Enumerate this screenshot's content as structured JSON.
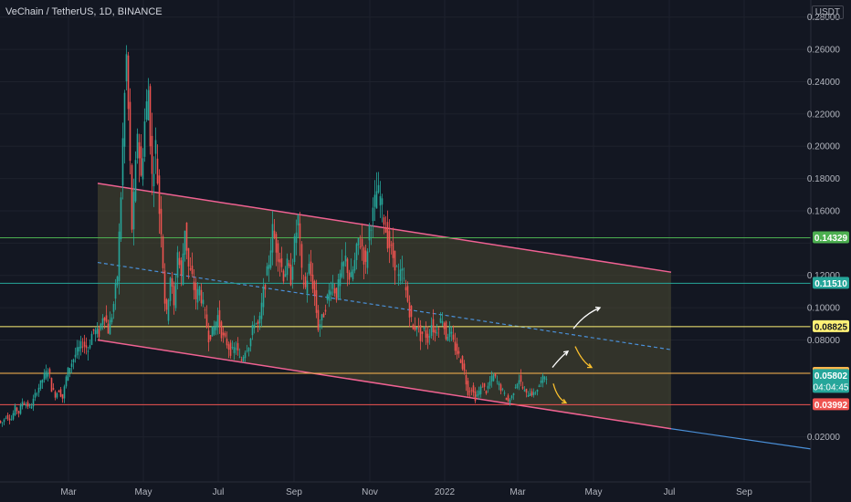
{
  "header": {
    "title": "VeChain / TetherUS, 1D, BINANCE",
    "currency": "USDT"
  },
  "chart_data": {
    "type": "candlestick",
    "x_tick_labels": [
      "Mar",
      "May",
      "Jul",
      "Sep",
      "Nov",
      "2022",
      "Mar",
      "May",
      "Jul",
      "Sep"
    ],
    "y_tick_labels": [
      "0.28000",
      "0.26000",
      "0.24000",
      "0.22000",
      "0.20000",
      "0.18000",
      "0.16000",
      "0.12000",
      "0.10000",
      "0.08000",
      "0.02000"
    ],
    "ylim": [
      0.0,
      0.29
    ],
    "price_path": [
      [
        0,
        0.03
      ],
      [
        3,
        0.028
      ],
      [
        8,
        0.033
      ],
      [
        14,
        0.031
      ],
      [
        18,
        0.038
      ],
      [
        22,
        0.035
      ],
      [
        26,
        0.042
      ],
      [
        30,
        0.04
      ],
      [
        35,
        0.038
      ],
      [
        40,
        0.046
      ],
      [
        45,
        0.052
      ],
      [
        50,
        0.058
      ],
      [
        55,
        0.062
      ],
      [
        58,
        0.05
      ],
      [
        62,
        0.046
      ],
      [
        66,
        0.049
      ],
      [
        70,
        0.044
      ],
      [
        75,
        0.06
      ],
      [
        80,
        0.066
      ],
      [
        85,
        0.072
      ],
      [
        92,
        0.078
      ],
      [
        98,
        0.074
      ],
      [
        103,
        0.086
      ],
      [
        110,
        0.084
      ],
      [
        115,
        0.098
      ],
      [
        120,
        0.086
      ],
      [
        125,
        0.098
      ],
      [
        130,
        0.12
      ],
      [
        134,
        0.17
      ],
      [
        137,
        0.22
      ],
      [
        140,
        0.255
      ],
      [
        143,
        0.205
      ],
      [
        146,
        0.15
      ],
      [
        149,
        0.175
      ],
      [
        152,
        0.21
      ],
      [
        156,
        0.18
      ],
      [
        160,
        0.215
      ],
      [
        164,
        0.235
      ],
      [
        168,
        0.18
      ],
      [
        172,
        0.2
      ],
      [
        176,
        0.16
      ],
      [
        179,
        0.145
      ],
      [
        181,
        0.11
      ],
      [
        184,
        0.095
      ],
      [
        188,
        0.12
      ],
      [
        192,
        0.1
      ],
      [
        196,
        0.135
      ],
      [
        200,
        0.118
      ],
      [
        204,
        0.15
      ],
      [
        208,
        0.125
      ],
      [
        212,
        0.118
      ],
      [
        216,
        0.106
      ],
      [
        220,
        0.112
      ],
      [
        225,
        0.098
      ],
      [
        230,
        0.082
      ],
      [
        235,
        0.086
      ],
      [
        240,
        0.095
      ],
      [
        245,
        0.082
      ],
      [
        250,
        0.078
      ],
      [
        255,
        0.072
      ],
      [
        260,
        0.076
      ],
      [
        265,
        0.066
      ],
      [
        270,
        0.074
      ],
      [
        275,
        0.078
      ],
      [
        280,
        0.092
      ],
      [
        285,
        0.088
      ],
      [
        290,
        0.11
      ],
      [
        295,
        0.124
      ],
      [
        300,
        0.148
      ],
      [
        304,
        0.138
      ],
      [
        308,
        0.13
      ],
      [
        312,
        0.12
      ],
      [
        316,
        0.126
      ],
      [
        320,
        0.118
      ],
      [
        324,
        0.14
      ],
      [
        328,
        0.155
      ],
      [
        332,
        0.12
      ],
      [
        336,
        0.112
      ],
      [
        340,
        0.125
      ],
      [
        345,
        0.112
      ],
      [
        350,
        0.088
      ],
      [
        355,
        0.094
      ],
      [
        360,
        0.106
      ],
      [
        365,
        0.116
      ],
      [
        370,
        0.108
      ],
      [
        375,
        0.122
      ],
      [
        380,
        0.13
      ],
      [
        385,
        0.116
      ],
      [
        390,
        0.128
      ],
      [
        394,
        0.142
      ],
      [
        398,
        0.138
      ],
      [
        402,
        0.125
      ],
      [
        406,
        0.15
      ],
      [
        410,
        0.158
      ],
      [
        414,
        0.172
      ],
      [
        418,
        0.168
      ],
      [
        422,
        0.155
      ],
      [
        426,
        0.142
      ],
      [
        430,
        0.135
      ],
      [
        434,
        0.128
      ],
      [
        438,
        0.118
      ],
      [
        442,
        0.122
      ],
      [
        446,
        0.11
      ],
      [
        450,
        0.098
      ],
      [
        454,
        0.086
      ],
      [
        458,
        0.09
      ],
      [
        462,
        0.082
      ],
      [
        466,
        0.086
      ],
      [
        470,
        0.08
      ],
      [
        474,
        0.09
      ],
      [
        478,
        0.084
      ],
      [
        482,
        0.09
      ],
      [
        486,
        0.094
      ],
      [
        490,
        0.082
      ],
      [
        494,
        0.086
      ],
      [
        498,
        0.078
      ],
      [
        502,
        0.072
      ],
      [
        506,
        0.068
      ],
      [
        510,
        0.06
      ],
      [
        514,
        0.048
      ],
      [
        518,
        0.05
      ],
      [
        522,
        0.044
      ],
      [
        526,
        0.048
      ],
      [
        530,
        0.052
      ],
      [
        534,
        0.048
      ],
      [
        538,
        0.054
      ],
      [
        542,
        0.058
      ],
      [
        546,
        0.054
      ],
      [
        550,
        0.05
      ],
      [
        554,
        0.046
      ],
      [
        558,
        0.042
      ],
      [
        562,
        0.045
      ],
      [
        566,
        0.052
      ],
      [
        570,
        0.056
      ],
      [
        574,
        0.05
      ],
      [
        578,
        0.046
      ],
      [
        582,
        0.048
      ],
      [
        586,
        0.046
      ],
      [
        590,
        0.05
      ],
      [
        594,
        0.054
      ],
      [
        598,
        0.058
      ]
    ],
    "channel": {
      "upper": [
        [
          107,
          0.177
        ],
        [
          735,
          0.122
        ]
      ],
      "lower": [
        [
          107,
          0.08
        ],
        [
          735,
          0.025
        ]
      ],
      "mid": [
        [
          107,
          0.128
        ],
        [
          735,
          0.074
        ]
      ],
      "fill": "#4d4a32"
    },
    "lower_extension": [
      [
        735,
        0.025
      ],
      [
        888,
        0.0125
      ]
    ],
    "levels": [
      {
        "value": 0.14329,
        "label": "0.14329",
        "color": "#4caf50"
      },
      {
        "value": 0.1151,
        "label": "0.11510",
        "color": "#26a69a"
      },
      {
        "value": 0.08825,
        "label": "0.08825",
        "color": "#fff176"
      },
      {
        "value": 0.05939,
        "label": "0.05939",
        "color": "#ffb74d"
      },
      {
        "value": 0.03992,
        "label": "0.03992",
        "color": "#ef5350"
      }
    ],
    "current_price": {
      "label": "0.05802",
      "countdown": "04:04:45",
      "color": "#26a69a"
    },
    "scenario_arrows": [
      {
        "color": "#ffffff",
        "path": [
          [
            628,
            0.087
          ],
          [
            640,
            0.096
          ],
          [
            657,
            0.1
          ]
        ]
      },
      {
        "color": "#ffffff",
        "path": [
          [
            605,
            0.063
          ],
          [
            615,
            0.07
          ],
          [
            622,
            0.073
          ]
        ]
      },
      {
        "color": "#fbc02d",
        "path": [
          [
            630,
            0.076
          ],
          [
            638,
            0.066
          ],
          [
            648,
            0.063
          ]
        ]
      },
      {
        "color": "#fbc02d",
        "path": [
          [
            606,
            0.053
          ],
          [
            610,
            0.044
          ],
          [
            620,
            0.041
          ]
        ]
      }
    ],
    "colors": {
      "up": "#26a69a",
      "down": "#ef5350",
      "background": "#131722",
      "grid": "#1e222d",
      "channel_line": "#f06292",
      "mid_line": "#4a90d9"
    }
  }
}
